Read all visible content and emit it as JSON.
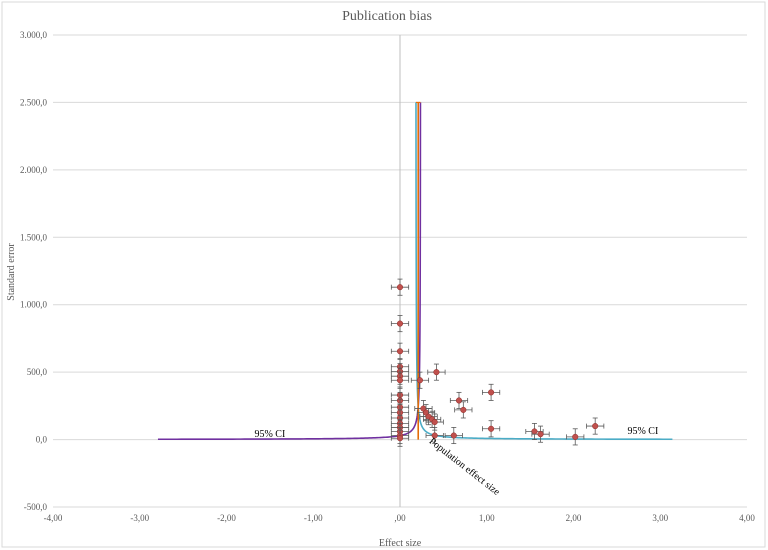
{
  "chart_data": {
    "type": "scatter",
    "title": "Publication bias",
    "xlabel": "Effect size",
    "ylabel": "Standard error",
    "xlim": [
      -4,
      4
    ],
    "ylim": [
      -500,
      3000
    ],
    "xticks": [
      -4,
      -3,
      -2,
      -1,
      0,
      1,
      2,
      3,
      4
    ],
    "xtick_labels": [
      "-4,00",
      "-3,00",
      "-2,00",
      "-1,00",
      ",00",
      "1,00",
      "2,00",
      "3,00",
      "4,00"
    ],
    "yticks": [
      -500,
      0,
      500,
      1000,
      1500,
      2000,
      2500,
      3000
    ],
    "ytick_labels": [
      "-500,0",
      "0,0",
      "500,0",
      "1.000,0",
      "1.500,0",
      "2.000,0",
      "2.500,0",
      "3.000,0"
    ],
    "grid": true,
    "colors": {
      "points": "#c0504d",
      "error_bars": "#595959",
      "left_ci": "#7030a0",
      "right_ci": "#4bacc6",
      "effect_line": "#e36c09",
      "zero_axis": "#bfbfbf"
    },
    "population_effect_size": 0.21,
    "ci_peak": 2500,
    "annotations": [
      {
        "text": "95% CI",
        "x": -1.5,
        "y": 20
      },
      {
        "text": "95% CI",
        "x": 2.8,
        "y": 40
      },
      {
        "text": "Population effect size",
        "x": 0.33,
        "y": -20
      }
    ],
    "series": [
      {
        "name": "",
        "x_error": 0.1,
        "y_error": 60,
        "points": [
          {
            "x": 0.0,
            "y": 1130
          },
          {
            "x": 0.0,
            "y": 860
          },
          {
            "x": 0.0,
            "y": 655
          },
          {
            "x": 0.0,
            "y": 540
          },
          {
            "x": 0.0,
            "y": 505
          },
          {
            "x": 0.0,
            "y": 470
          },
          {
            "x": 0.0,
            "y": 440
          },
          {
            "x": 0.0,
            "y": 330
          },
          {
            "x": 0.0,
            "y": 290
          },
          {
            "x": 0.0,
            "y": 240
          },
          {
            "x": 0.0,
            "y": 200
          },
          {
            "x": 0.0,
            "y": 160
          },
          {
            "x": 0.0,
            "y": 120
          },
          {
            "x": 0.0,
            "y": 90
          },
          {
            "x": 0.0,
            "y": 60
          },
          {
            "x": 0.0,
            "y": 30
          },
          {
            "x": 0.0,
            "y": 10
          },
          {
            "x": 0.23,
            "y": 440
          },
          {
            "x": 0.27,
            "y": 230
          },
          {
            "x": 0.3,
            "y": 200
          },
          {
            "x": 0.33,
            "y": 170
          },
          {
            "x": 0.37,
            "y": 150
          },
          {
            "x": 0.4,
            "y": 130
          },
          {
            "x": 0.42,
            "y": 500
          },
          {
            "x": 0.4,
            "y": 30
          },
          {
            "x": 0.62,
            "y": 30
          },
          {
            "x": 0.68,
            "y": 290
          },
          {
            "x": 0.73,
            "y": 220
          },
          {
            "x": 1.05,
            "y": 350
          },
          {
            "x": 1.05,
            "y": 80
          },
          {
            "x": 1.55,
            "y": 60
          },
          {
            "x": 1.62,
            "y": 40
          },
          {
            "x": 2.02,
            "y": 20
          },
          {
            "x": 2.25,
            "y": 100
          }
        ]
      }
    ]
  }
}
